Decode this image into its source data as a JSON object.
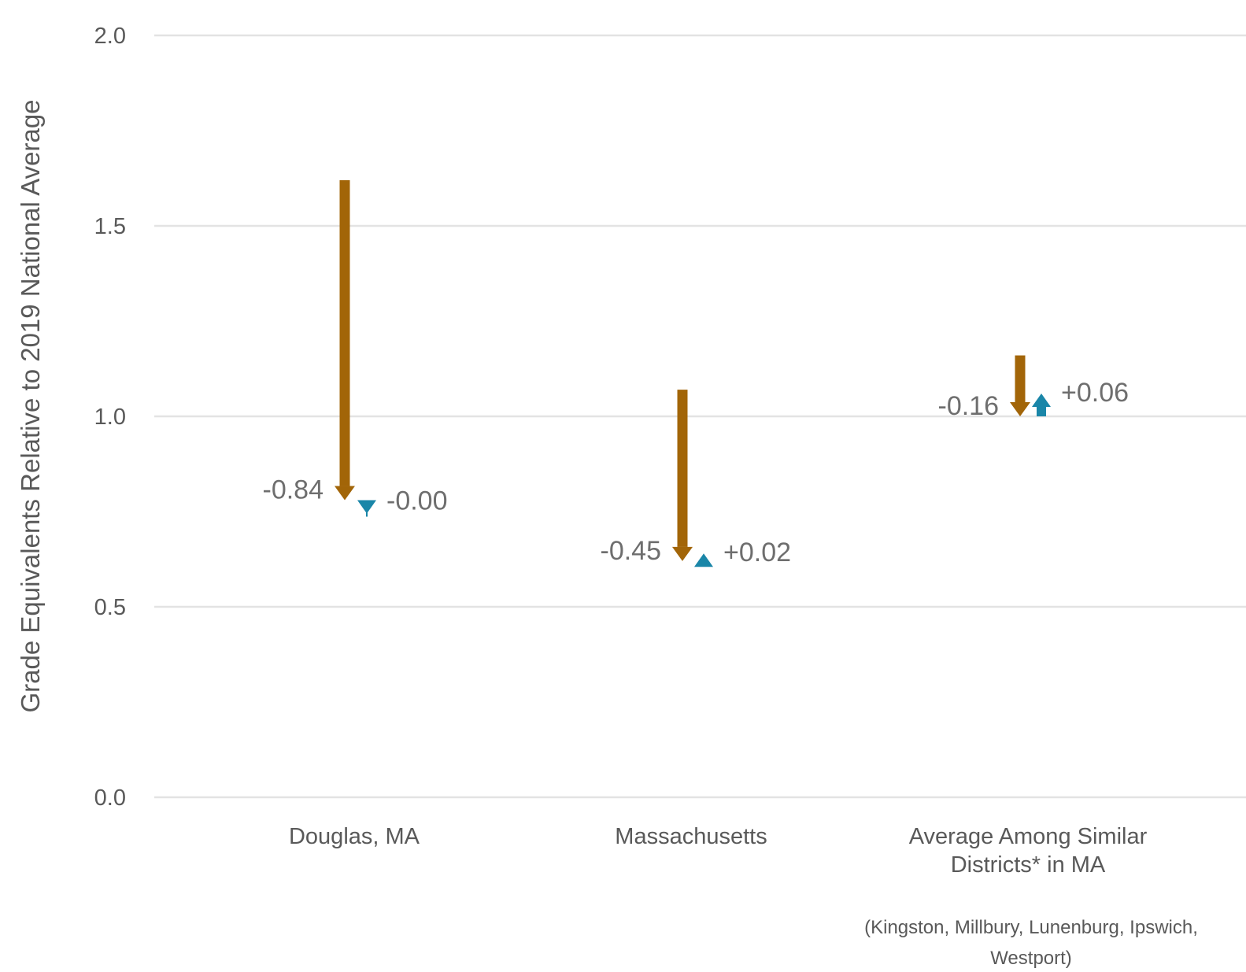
{
  "chart_data": {
    "type": "arrow",
    "ylabel": "Grade Equivalents Relative to 2019 National Average",
    "ylim": [
      0.0,
      2.0
    ],
    "yticks": [
      "0.0",
      "0.5",
      "1.0",
      "1.5",
      "2.0"
    ],
    "grid": true,
    "categories": [
      {
        "label_lines": [
          "Douglas, MA"
        ],
        "note_lines": []
      },
      {
        "label_lines": [
          "Massachusetts"
        ],
        "note_lines": []
      },
      {
        "label_lines": [
          "Average Among Similar",
          "Districts* in MA"
        ],
        "note_lines": [
          "(Kingston, Millbury, Lunenburg, Ipswich,",
          "Westport)"
        ]
      }
    ],
    "series": [
      {
        "color": "#a26508",
        "start": [
          1.62,
          1.07,
          1.16
        ],
        "change": [
          -0.84,
          -0.45,
          -0.16
        ],
        "labels": [
          "-0.84",
          "-0.45",
          "-0.16"
        ]
      },
      {
        "color": "#1a86a8",
        "start": [
          0.78,
          0.62,
          1.0
        ],
        "change": [
          -0.0,
          0.02,
          0.06
        ],
        "labels": [
          "-0.00",
          "+0.02",
          "+0.06"
        ]
      }
    ],
    "colors": {
      "brown": "#a26508",
      "blue": "#1a86a8",
      "grid": "#e3e3e3",
      "text": "#595959"
    }
  }
}
